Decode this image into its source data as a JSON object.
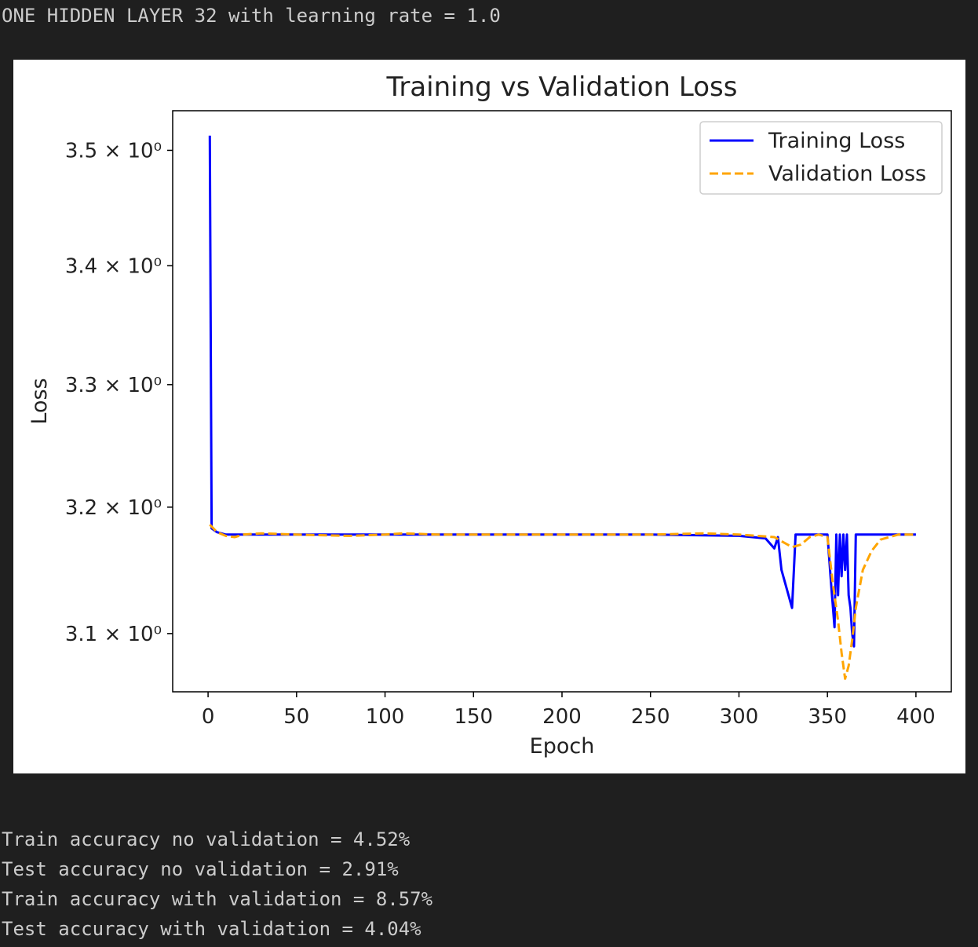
{
  "output_header": "ONE HIDDEN LAYER 32 with learning rate = 1.0",
  "stats": [
    "Train accuracy no validation = 4.52%",
    "Test accuracy no validation = 2.91%",
    "Train accuracy with validation = 8.57%",
    "Test accuracy with validation = 4.04%"
  ],
  "chart_data": {
    "type": "line",
    "title": "Training vs Validation Loss",
    "xlabel": "Epoch",
    "ylabel": "Loss",
    "xlim": [
      -20,
      420
    ],
    "ylim": [
      3.055,
      3.535
    ],
    "yscale": "log",
    "legend_placement": "top-right",
    "grid": false,
    "x_ticks": [
      0,
      50,
      100,
      150,
      200,
      250,
      300,
      350,
      400
    ],
    "x_tick_labels": [
      "0",
      "50",
      "100",
      "150",
      "200",
      "250",
      "300",
      "350",
      "400"
    ],
    "y_ticks": [
      3.1,
      3.2,
      3.3,
      3.4,
      3.5
    ],
    "y_tick_labels": [
      "3.1 × 10⁰",
      "3.2 × 10⁰",
      "3.3 × 10⁰",
      "3.4 × 10⁰",
      "3.5 × 10⁰"
    ],
    "series": [
      {
        "name": "Training Loss",
        "color": "#0000ff",
        "dash": "solid",
        "x": [
          1,
          2,
          5,
          10,
          20,
          50,
          100,
          150,
          200,
          250,
          300,
          315,
          320,
          322,
          324,
          326,
          328,
          330,
          332,
          340,
          345,
          350,
          352,
          354,
          355,
          356,
          357,
          358,
          359,
          360,
          361,
          362,
          363,
          364,
          365,
          366,
          368,
          370,
          380,
          390,
          400
        ],
        "y": [
          3.513,
          3.183,
          3.18,
          3.178,
          3.178,
          3.178,
          3.178,
          3.178,
          3.178,
          3.178,
          3.177,
          3.175,
          3.167,
          3.176,
          3.15,
          3.14,
          3.13,
          3.12,
          3.178,
          3.178,
          3.178,
          3.178,
          3.14,
          3.105,
          3.178,
          3.13,
          3.178,
          3.145,
          3.178,
          3.15,
          3.178,
          3.13,
          3.12,
          3.1,
          3.09,
          3.178,
          3.178,
          3.178,
          3.178,
          3.178,
          3.178
        ]
      },
      {
        "name": "Validation Loss",
        "color": "#ffa500",
        "dash": "dashed",
        "x": [
          1,
          5,
          10,
          15,
          20,
          30,
          50,
          80,
          100,
          110,
          130,
          150,
          200,
          250,
          280,
          300,
          310,
          320,
          325,
          330,
          335,
          340,
          345,
          350,
          353,
          356,
          358,
          360,
          362,
          364,
          366,
          368,
          370,
          375,
          380,
          390,
          400
        ],
        "y": [
          3.186,
          3.18,
          3.177,
          3.176,
          3.178,
          3.179,
          3.178,
          3.177,
          3.178,
          3.179,
          3.178,
          3.178,
          3.178,
          3.178,
          3.179,
          3.178,
          3.177,
          3.176,
          3.172,
          3.168,
          3.17,
          3.176,
          3.178,
          3.176,
          3.14,
          3.11,
          3.085,
          3.065,
          3.075,
          3.095,
          3.12,
          3.135,
          3.15,
          3.165,
          3.174,
          3.178,
          3.178
        ]
      }
    ]
  }
}
